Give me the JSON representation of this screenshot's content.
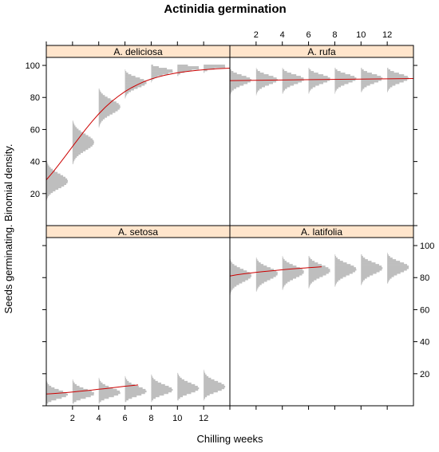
{
  "chart_data": {
    "type": "lattice",
    "title": "Actinidia germination",
    "xlabel": "Chilling weeks",
    "ylabel": "Seeds germinating.  Binomial density.",
    "xlim": [
      0,
      14
    ],
    "ylim": [
      0,
      105
    ],
    "x_ticks": [
      2,
      4,
      6,
      8,
      10,
      12
    ],
    "y_ticks": [
      20,
      40,
      60,
      80,
      100
    ],
    "x": [
      0,
      2,
      4,
      6,
      8,
      10,
      12
    ],
    "curve_x": [
      0,
      0.5,
      1,
      1.5,
      2,
      2.5,
      3,
      3.5,
      4,
      4.5,
      5,
      5.5,
      6,
      6.5,
      7,
      7.5,
      8,
      8.5,
      9,
      9.5,
      10,
      10.5,
      11,
      11.5,
      12,
      12.5,
      13,
      13.5,
      14
    ],
    "series": [
      {
        "name": "A. deliciosa",
        "means": [
          28,
          52,
          74,
          89,
          96,
          98,
          99
        ],
        "curve": [
          28.5,
          33.3,
          38.5,
          43.9,
          49.4,
          54.8,
          60.1,
          65.1,
          69.7,
          73.9,
          77.6,
          80.8,
          83.7,
          86.1,
          88.2,
          90.0,
          91.5,
          92.7,
          93.8,
          94.6,
          95.4,
          96.0,
          96.5,
          96.9,
          97.3,
          97.6,
          97.9,
          98.1,
          98.3
        ]
      },
      {
        "name": "A. rufa",
        "means": [
          90.5,
          90.7,
          91.0,
          91.2,
          91.4,
          91.5,
          91.7
        ],
        "curve": [
          90.5,
          91.8
        ]
      },
      {
        "name": "A. setosa",
        "means": [
          7.5,
          8.0,
          8.7,
          9.5,
          10.4,
          11.3,
          12.3
        ],
        "curve": [
          7.3,
          7.6,
          7.9,
          8.2,
          8.6,
          9.0,
          9.4,
          9.8,
          10.3,
          10.7,
          11.2,
          11.7,
          12.2,
          12.6,
          13.0
        ]
      },
      {
        "name": "A. latifolia",
        "means": [
          81,
          82.3,
          83.3,
          84.1,
          84.9,
          85.6,
          86.2
        ],
        "curve": [
          81,
          81.7,
          82.3,
          82.8,
          83.3,
          83.7,
          84.1,
          84.5,
          84.9,
          85.3,
          85.6,
          85.9,
          86.2,
          86.5,
          86.8
        ]
      }
    ],
    "colors": {
      "strip": "#ffe5cc",
      "density": "#bebebe",
      "curve": "#cc0000",
      "frame": "#000000"
    }
  }
}
